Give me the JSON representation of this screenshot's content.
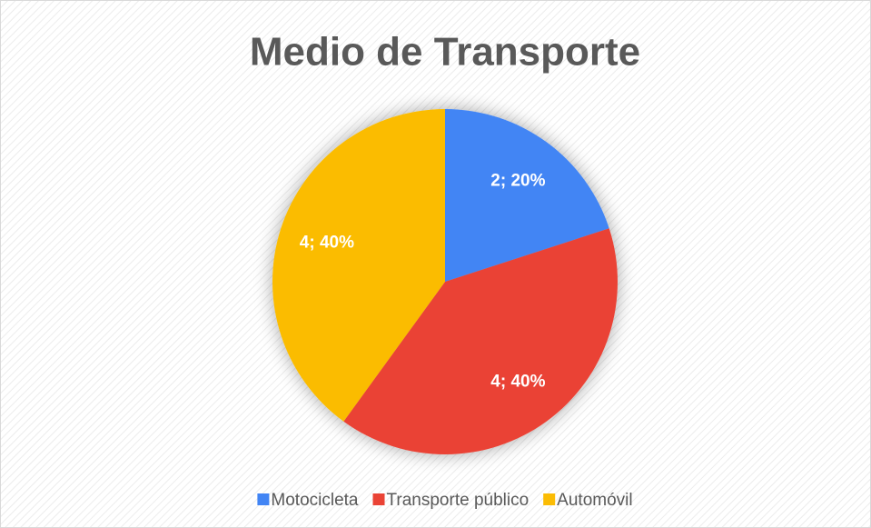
{
  "chart_data": {
    "type": "pie",
    "title": "Medio de Transporte",
    "categories": [
      "Motocicleta",
      "Transporte público",
      "Automóvil"
    ],
    "values": [
      2,
      4,
      4
    ],
    "value_labels": [
      "2; 20%",
      "4; 40%",
      "4; 40%"
    ],
    "colors": [
      "#4285f4",
      "#ea4335",
      "#fbbc04"
    ],
    "legend": "bottom"
  }
}
